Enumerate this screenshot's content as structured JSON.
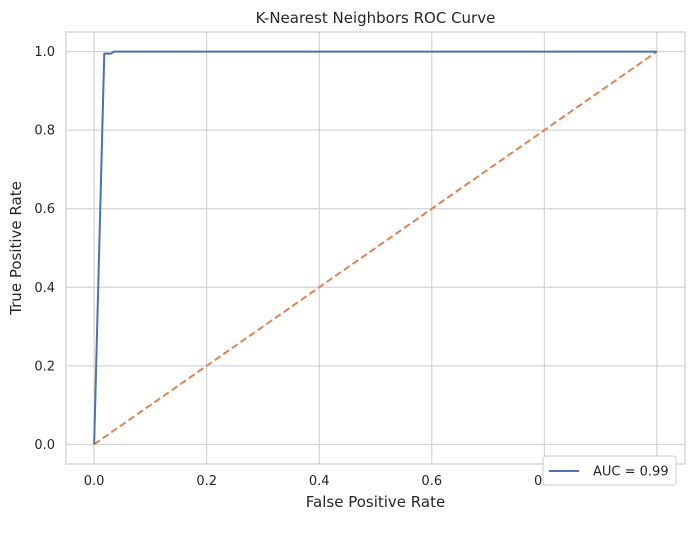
{
  "chart_data": {
    "type": "line",
    "title": "K-Nearest Neighbors ROC Curve",
    "xlabel": "False Positive Rate",
    "ylabel": "True Positive Rate",
    "xlim": [
      -0.05,
      1.05
    ],
    "ylim": [
      -0.05,
      1.05
    ],
    "xticks": [
      0.0,
      0.2,
      0.4,
      0.6,
      0.8,
      1.0
    ],
    "yticks": [
      0.0,
      0.2,
      0.4,
      0.6,
      0.8,
      1.0
    ],
    "xtick_labels": [
      "0.0",
      "0.2",
      "0.4",
      "0.6",
      "0.8",
      "1.0"
    ],
    "ytick_labels": [
      "0.0",
      "0.2",
      "0.4",
      "0.6",
      "0.8",
      "1.0"
    ],
    "grid": true,
    "legend_position": "lower right",
    "series": [
      {
        "name": "AUC = 0.99",
        "color": "#4c72b0",
        "style": "solid",
        "x": [
          0.0,
          0.018,
          0.03,
          0.035,
          1.0
        ],
        "y": [
          0.0,
          0.995,
          0.995,
          1.0,
          1.0
        ]
      },
      {
        "color": "#dd8452",
        "style": "dashed",
        "x": [
          0.0,
          1.0
        ],
        "y": [
          0.0,
          1.0
        ]
      }
    ]
  }
}
